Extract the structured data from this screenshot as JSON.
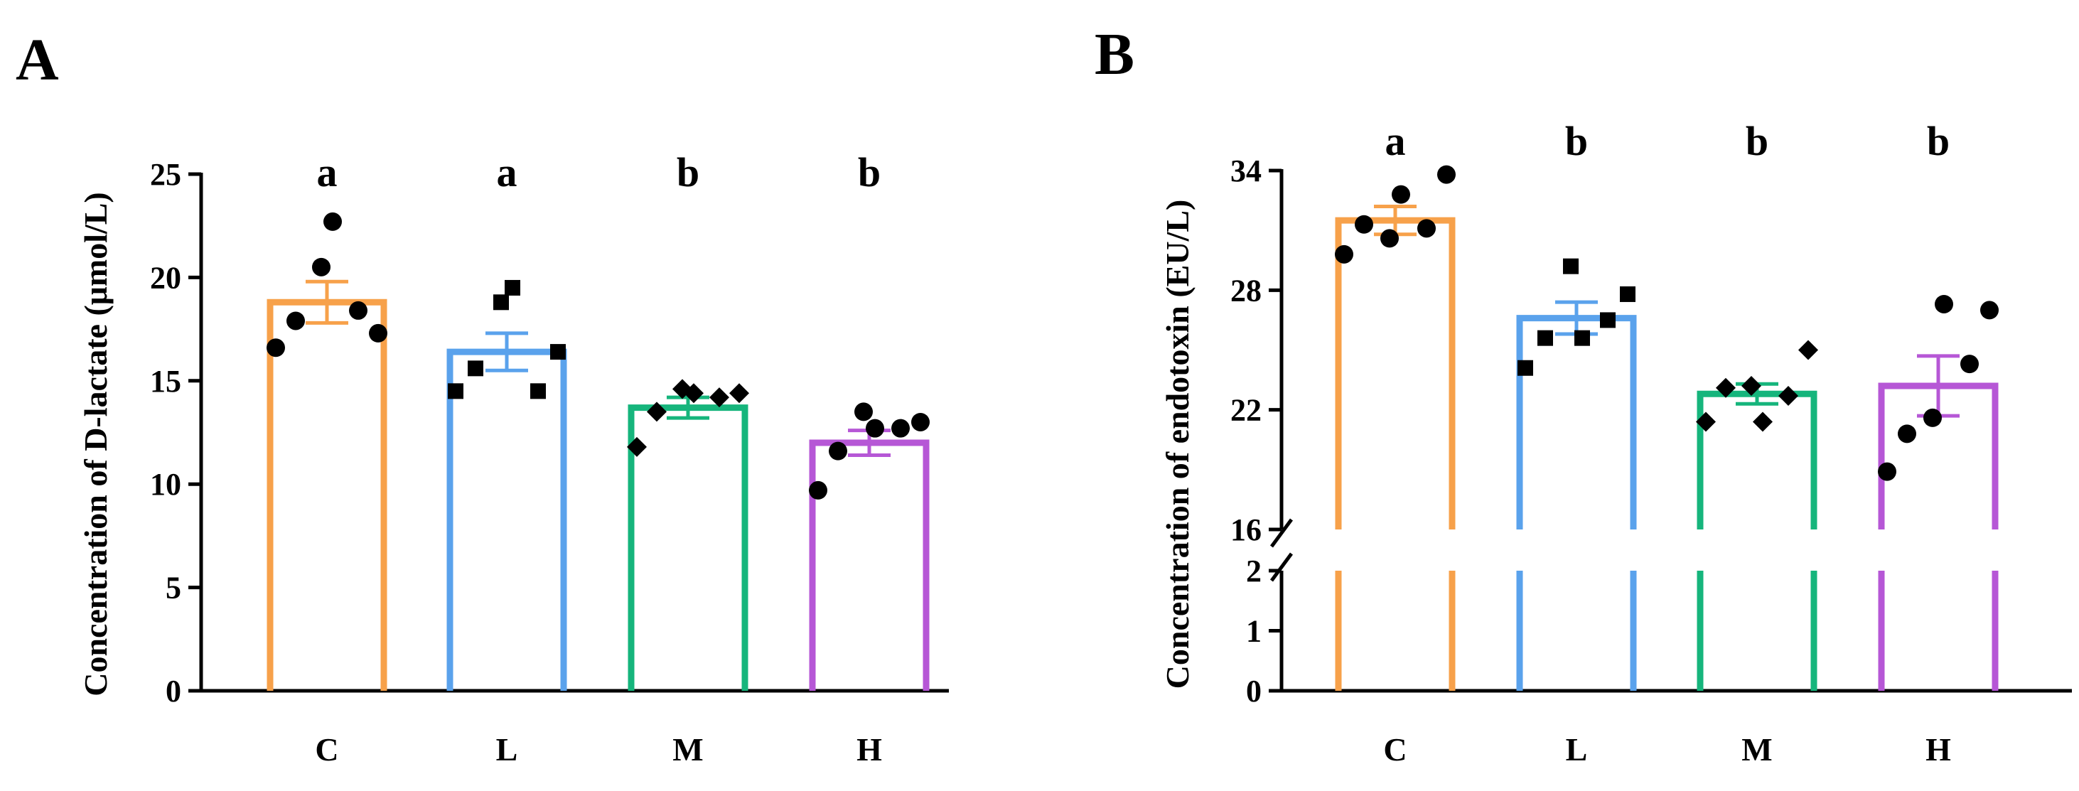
{
  "chart_data": [
    {
      "panel": "A",
      "type": "bar",
      "ylabel": "Concentration of D-lactate (μmol/L)",
      "xlabel": "",
      "categories": [
        "C",
        "L",
        "M",
        "H"
      ],
      "values": [
        18.8,
        16.4,
        13.7,
        12.0
      ],
      "sem": [
        1.0,
        0.9,
        0.5,
        0.6
      ],
      "letters": [
        "a",
        "a",
        "b",
        "b"
      ],
      "colors": [
        "#F7A14A",
        "#5AA2EC",
        "#16B57C",
        "#B657D6"
      ],
      "markers": [
        "circle",
        "square",
        "diamond",
        "circle"
      ],
      "points": [
        [
          16.6,
          17.9,
          18.4,
          17.3,
          20.5,
          22.7
        ],
        [
          14.5,
          15.6,
          14.5,
          16.4,
          18.8,
          19.5
        ],
        [
          11.8,
          13.5,
          14.2,
          14.4,
          14.6,
          14.4
        ],
        [
          9.7,
          11.6,
          12.7,
          13.0,
          13.5,
          12.7
        ]
      ],
      "ylim": [
        0,
        25
      ],
      "yticks": [
        0,
        5,
        10,
        15,
        20,
        25
      ],
      "ytick_labels": [
        "0",
        "5",
        "10",
        "15",
        "20",
        "25"
      ]
    },
    {
      "panel": "B",
      "type": "bar",
      "ylabel": "Concentration of endotoxin (EU/L)",
      "xlabel": "",
      "categories": [
        "C",
        "L",
        "M",
        "H"
      ],
      "values": [
        31.5,
        26.6,
        22.8,
        23.2
      ],
      "sem": [
        0.7,
        0.8,
        0.5,
        1.5
      ],
      "letters": [
        "a",
        "b",
        "b",
        "b"
      ],
      "colors": [
        "#F7A14A",
        "#5AA2EC",
        "#16B57C",
        "#B657D6"
      ],
      "markers": [
        "circle",
        "square",
        "diamond",
        "circle"
      ],
      "points": [
        [
          29.8,
          31.3,
          31.1,
          33.8,
          30.6,
          32.8
        ],
        [
          24.1,
          25.6,
          26.5,
          27.8,
          29.2,
          25.6
        ],
        [
          21.4,
          23.1,
          22.7,
          25.0,
          23.2,
          21.4
        ],
        [
          18.9,
          20.8,
          24.3,
          27.0,
          21.6,
          27.3
        ]
      ],
      "y_break": true,
      "lower_segment": {
        "ylim": [
          0,
          2
        ],
        "yticks": [
          0,
          1,
          2
        ],
        "ytick_labels": [
          "0",
          "1",
          "2"
        ]
      },
      "upper_segment": {
        "ylim": [
          16,
          34
        ],
        "yticks": [
          16,
          22,
          28,
          34
        ],
        "ytick_labels": [
          "16",
          "22",
          "28",
          "34"
        ]
      }
    }
  ]
}
